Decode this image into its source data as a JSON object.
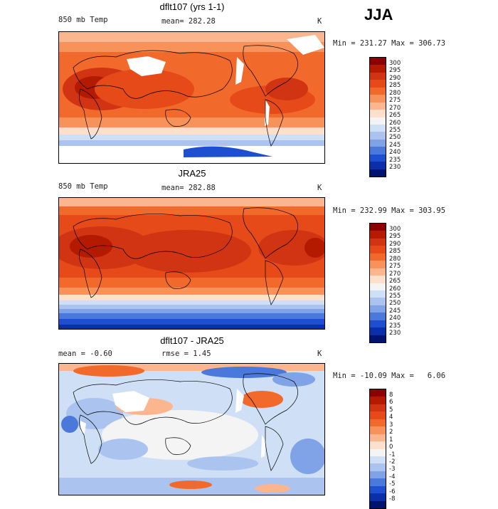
{
  "season": "JJA",
  "panels": [
    {
      "title": "dflt107 (yrs 1-1)",
      "left": "850 mb Temp",
      "center": "mean= 282.28",
      "units": "K",
      "minmax": "Min = 231.27 Max = 306.73",
      "colorbar": {
        "labels": [
          "300",
          "295",
          "290",
          "285",
          "280",
          "275",
          "270",
          "265",
          "260",
          "255",
          "250",
          "245",
          "240",
          "235",
          "230"
        ],
        "colors": [
          "#8b0000",
          "#b31a00",
          "#d03412",
          "#e64a19",
          "#f26a2b",
          "#f7925a",
          "#fbb58f",
          "#fde0cc",
          "#f4f4f4",
          "#cfe0f6",
          "#aac4ef",
          "#7fa3e6",
          "#4b79db",
          "#1f4fd1",
          "#0a2fa8",
          "#00136e"
        ]
      }
    },
    {
      "title": "JRA25",
      "left": "850 mb Temp",
      "center": "mean= 282.88",
      "units": "K",
      "minmax": "Min = 232.99 Max = 303.95",
      "colorbar": {
        "labels": [
          "300",
          "295",
          "290",
          "285",
          "280",
          "275",
          "270",
          "265",
          "260",
          "255",
          "250",
          "245",
          "240",
          "235",
          "230"
        ],
        "colors": [
          "#8b0000",
          "#b31a00",
          "#d03412",
          "#e64a19",
          "#f26a2b",
          "#f7925a",
          "#fbb58f",
          "#fde0cc",
          "#f4f4f4",
          "#cfe0f6",
          "#aac4ef",
          "#7fa3e6",
          "#4b79db",
          "#1f4fd1",
          "#0a2fa8",
          "#00136e"
        ]
      }
    },
    {
      "title": "dflt107 - JRA25",
      "left": "mean =  -0.60",
      "center": "rmse =   1.45",
      "units": "K",
      "minmax": "Min = -10.09 Max =   6.06",
      "colorbar": {
        "labels": [
          "8",
          "6",
          "5",
          "4",
          "3",
          "2",
          "1",
          "0",
          "-1",
          "-2",
          "-3",
          "-4",
          "-5",
          "-6",
          "-8"
        ],
        "colors": [
          "#8b0000",
          "#b31a00",
          "#d03412",
          "#e64a19",
          "#f26a2b",
          "#f7925a",
          "#fbb58f",
          "#fde0cc",
          "#f4f4f4",
          "#cfe0f6",
          "#aac4ef",
          "#7fa3e6",
          "#4b79db",
          "#1f4fd1",
          "#0a2fa8",
          "#00136e"
        ]
      }
    }
  ]
}
